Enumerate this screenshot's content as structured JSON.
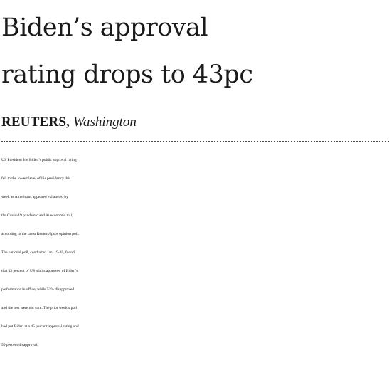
{
  "article": {
    "headline_lines": [
      "Biden’s approval",
      "rating drops to 43pc"
    ],
    "byline": {
      "agency": "REUTERS,",
      "location": "Washington"
    },
    "body_lines": [
      "US President Joe Biden’s public approval rating",
      "fell to the lowest level of his presidency this",
      "week as Americans appeared exhausted by",
      "the Covid-19 pandemic and its economic toll,",
      "according to the latest Reuters/Ipsos opinion poll.",
      "The national poll, conducted Jan. 19-20, found",
      "that 43 percent of US adults approved of Biden’s",
      "performance in office, while 52% disapproved",
      "and the rest were not sure. The prior week’s poll",
      "had put Biden at a 45 percent approval rating and",
      "50 percent disapproval."
    ]
  }
}
